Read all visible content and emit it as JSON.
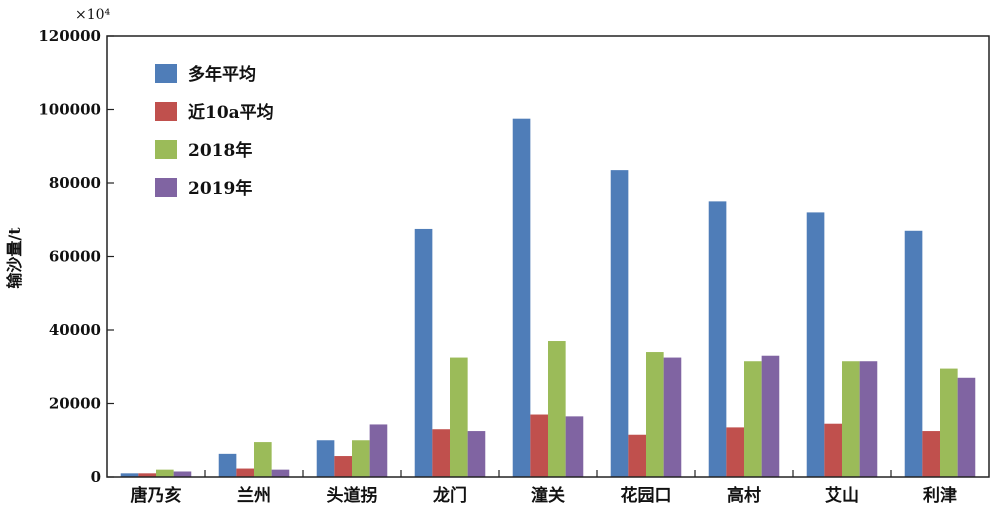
{
  "chart_data": {
    "type": "bar",
    "ylabel": "输沙量/t",
    "y_multiplier": "×10⁴",
    "ylim": [
      0,
      120000
    ],
    "yticks": [
      "0",
      "20000",
      "40000",
      "60000",
      "80000",
      "100000",
      "120000"
    ],
    "grid": false,
    "legend_position": "top-left",
    "categories": [
      "唐乃亥",
      "兰州",
      "头道拐",
      "龙门",
      "潼关",
      "花园口",
      "高村",
      "艾山",
      "利津"
    ],
    "series": [
      {
        "name": "多年平均",
        "color": "#4f7db8",
        "values": [
          1000,
          6300,
          10000,
          67500,
          97500,
          83500,
          75000,
          72000,
          67000
        ]
      },
      {
        "name": "近10a平均",
        "color": "#c0504d",
        "values": [
          1000,
          2300,
          5700,
          13000,
          17000,
          11500,
          13500,
          14500,
          12500
        ]
      },
      {
        "name": "2018年",
        "color": "#9bbb59",
        "values": [
          2000,
          9500,
          10000,
          32500,
          37000,
          34000,
          31500,
          31500,
          29500
        ]
      },
      {
        "name": "2019年",
        "color": "#8064a2",
        "values": [
          1500,
          2000,
          14300,
          12500,
          16500,
          32500,
          33000,
          31500,
          27000
        ]
      }
    ]
  }
}
